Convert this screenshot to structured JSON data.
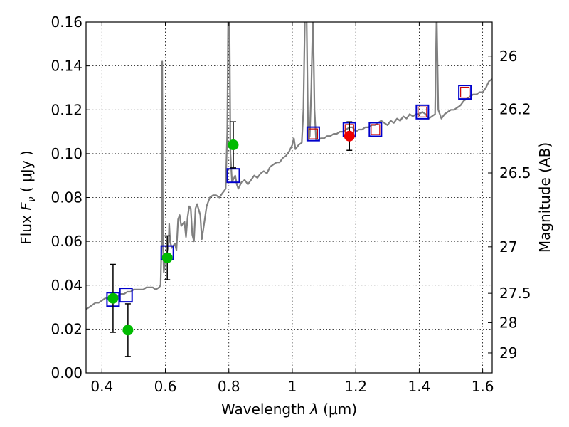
{
  "chart_data": {
    "type": "scatter",
    "title": "",
    "xlabel_prefix": "Wavelength",
    "xlabel_symbol": "λ",
    "xlabel_unit": "(μm)",
    "ylabel_prefix": "Flux",
    "ylabel_symbol": "F",
    "ylabel_subscript": "ν",
    "ylabel_unit": "( μJy )",
    "y2label": "Magnitude (AB)",
    "xlim": [
      0.35,
      1.63
    ],
    "ylim": [
      0.0,
      0.16
    ],
    "grid": true,
    "x_ticks": [
      0.4,
      0.6,
      0.8,
      1.0,
      1.2,
      1.4,
      1.6
    ],
    "x_tick_labels": [
      "0.4",
      "0.6",
      "0.8",
      "1",
      "1.2",
      "1.4",
      "1.6"
    ],
    "y_ticks": [
      0.0,
      0.02,
      0.04,
      0.06,
      0.08,
      0.1,
      0.12,
      0.14,
      0.16
    ],
    "y_tick_labels": [
      "0.00",
      "0.02",
      "0.04",
      "0.06",
      "0.08",
      "0.10",
      "0.12",
      "0.14",
      "0.16"
    ],
    "y2_ticks": [
      {
        "label": "26",
        "flux": 0.1445
      },
      {
        "label": "26.2",
        "flux": 0.1202
      },
      {
        "label": "26.5",
        "flux": 0.0912
      },
      {
        "label": "27",
        "flux": 0.0575
      },
      {
        "label": "27.5",
        "flux": 0.0363
      },
      {
        "label": "28",
        "flux": 0.0229
      },
      {
        "label": "29",
        "flux": 0.0091
      }
    ],
    "colors": {
      "spectrum": "#808080",
      "model": "#0000cc",
      "model_inner": "#cc0000",
      "green": "#00bb00",
      "red": "#ee0000",
      "errorbar": "#000000"
    },
    "spectrum": [
      [
        0.35,
        0.029
      ],
      [
        0.36,
        0.03
      ],
      [
        0.37,
        0.031
      ],
      [
        0.38,
        0.032
      ],
      [
        0.39,
        0.032
      ],
      [
        0.4,
        0.033
      ],
      [
        0.41,
        0.034
      ],
      [
        0.42,
        0.034
      ],
      [
        0.43,
        0.034
      ],
      [
        0.44,
        0.035
      ],
      [
        0.45,
        0.035
      ],
      [
        0.46,
        0.036
      ],
      [
        0.47,
        0.036
      ],
      [
        0.48,
        0.037
      ],
      [
        0.49,
        0.037
      ],
      [
        0.5,
        0.038
      ],
      [
        0.51,
        0.038
      ],
      [
        0.52,
        0.038
      ],
      [
        0.53,
        0.038
      ],
      [
        0.54,
        0.039
      ],
      [
        0.55,
        0.039
      ],
      [
        0.56,
        0.039
      ],
      [
        0.57,
        0.038
      ],
      [
        0.58,
        0.039
      ],
      [
        0.585,
        0.04
      ],
      [
        0.588,
        0.06
      ],
      [
        0.59,
        0.142
      ],
      [
        0.592,
        0.06
      ],
      [
        0.595,
        0.046
      ],
      [
        0.6,
        0.052
      ],
      [
        0.605,
        0.055
      ],
      [
        0.61,
        0.058
      ],
      [
        0.612,
        0.068
      ],
      [
        0.615,
        0.06
      ],
      [
        0.62,
        0.057
      ],
      [
        0.63,
        0.059
      ],
      [
        0.635,
        0.056
      ],
      [
        0.64,
        0.07
      ],
      [
        0.645,
        0.072
      ],
      [
        0.65,
        0.067
      ],
      [
        0.66,
        0.069
      ],
      [
        0.665,
        0.062
      ],
      [
        0.67,
        0.071
      ],
      [
        0.675,
        0.076
      ],
      [
        0.68,
        0.075
      ],
      [
        0.685,
        0.063
      ],
      [
        0.69,
        0.06
      ],
      [
        0.695,
        0.075
      ],
      [
        0.7,
        0.077
      ],
      [
        0.71,
        0.072
      ],
      [
        0.715,
        0.061
      ],
      [
        0.72,
        0.066
      ],
      [
        0.73,
        0.076
      ],
      [
        0.74,
        0.08
      ],
      [
        0.75,
        0.081
      ],
      [
        0.76,
        0.081
      ],
      [
        0.77,
        0.08
      ],
      [
        0.78,
        0.082
      ],
      [
        0.785,
        0.083
      ],
      [
        0.79,
        0.084
      ],
      [
        0.795,
        0.11
      ],
      [
        0.798,
        0.165
      ],
      [
        0.802,
        0.165
      ],
      [
        0.805,
        0.1
      ],
      [
        0.81,
        0.087
      ],
      [
        0.82,
        0.09
      ],
      [
        0.825,
        0.086
      ],
      [
        0.83,
        0.084
      ],
      [
        0.84,
        0.087
      ],
      [
        0.85,
        0.088
      ],
      [
        0.86,
        0.086
      ],
      [
        0.87,
        0.088
      ],
      [
        0.88,
        0.09
      ],
      [
        0.89,
        0.089
      ],
      [
        0.9,
        0.091
      ],
      [
        0.91,
        0.092
      ],
      [
        0.92,
        0.091
      ],
      [
        0.93,
        0.094
      ],
      [
        0.94,
        0.095
      ],
      [
        0.95,
        0.096
      ],
      [
        0.96,
        0.096
      ],
      [
        0.97,
        0.098
      ],
      [
        0.98,
        0.099
      ],
      [
        0.99,
        0.101
      ],
      [
        1.0,
        0.104
      ],
      [
        1.005,
        0.107
      ],
      [
        1.01,
        0.102
      ],
      [
        1.02,
        0.104
      ],
      [
        1.03,
        0.105
      ],
      [
        1.035,
        0.12
      ],
      [
        1.04,
        0.165
      ],
      [
        1.045,
        0.165
      ],
      [
        1.05,
        0.106
      ],
      [
        1.055,
        0.108
      ],
      [
        1.06,
        0.13
      ],
      [
        1.065,
        0.165
      ],
      [
        1.07,
        0.12
      ],
      [
        1.075,
        0.106
      ],
      [
        1.08,
        0.106
      ],
      [
        1.09,
        0.107
      ],
      [
        1.1,
        0.107
      ],
      [
        1.11,
        0.108
      ],
      [
        1.12,
        0.108
      ],
      [
        1.13,
        0.109
      ],
      [
        1.14,
        0.109
      ],
      [
        1.15,
        0.11
      ],
      [
        1.16,
        0.11
      ],
      [
        1.17,
        0.111
      ],
      [
        1.18,
        0.112
      ],
      [
        1.19,
        0.112
      ],
      [
        1.2,
        0.11
      ],
      [
        1.21,
        0.111
      ],
      [
        1.22,
        0.111
      ],
      [
        1.23,
        0.112
      ],
      [
        1.24,
        0.112
      ],
      [
        1.25,
        0.113
      ],
      [
        1.26,
        0.113
      ],
      [
        1.27,
        0.114
      ],
      [
        1.28,
        0.115
      ],
      [
        1.29,
        0.114
      ],
      [
        1.3,
        0.113
      ],
      [
        1.31,
        0.115
      ],
      [
        1.32,
        0.114
      ],
      [
        1.33,
        0.116
      ],
      [
        1.34,
        0.115
      ],
      [
        1.35,
        0.117
      ],
      [
        1.36,
        0.116
      ],
      [
        1.37,
        0.118
      ],
      [
        1.38,
        0.117
      ],
      [
        1.39,
        0.118
      ],
      [
        1.4,
        0.118
      ],
      [
        1.41,
        0.119
      ],
      [
        1.42,
        0.118
      ],
      [
        1.43,
        0.116
      ],
      [
        1.44,
        0.117
      ],
      [
        1.45,
        0.118
      ],
      [
        1.455,
        0.165
      ],
      [
        1.46,
        0.12
      ],
      [
        1.47,
        0.116
      ],
      [
        1.48,
        0.118
      ],
      [
        1.49,
        0.119
      ],
      [
        1.5,
        0.12
      ],
      [
        1.51,
        0.12
      ],
      [
        1.52,
        0.121
      ],
      [
        1.53,
        0.122
      ],
      [
        1.54,
        0.124
      ],
      [
        1.55,
        0.125
      ],
      [
        1.56,
        0.126
      ],
      [
        1.57,
        0.127
      ],
      [
        1.58,
        0.127
      ],
      [
        1.59,
        0.128
      ],
      [
        1.6,
        0.128
      ],
      [
        1.61,
        0.13
      ],
      [
        1.62,
        0.133
      ],
      [
        1.63,
        0.134
      ]
    ],
    "model_points": [
      {
        "x": 0.435,
        "y": 0.0335,
        "inner": false
      },
      {
        "x": 0.476,
        "y": 0.0355,
        "inner": false
      },
      {
        "x": 0.606,
        "y": 0.0548,
        "inner": false
      },
      {
        "x": 0.814,
        "y": 0.09,
        "inner": false
      },
      {
        "x": 1.066,
        "y": 0.109,
        "inner": true
      },
      {
        "x": 1.18,
        "y": 0.111,
        "inner": true
      },
      {
        "x": 1.262,
        "y": 0.111,
        "inner": true
      },
      {
        "x": 1.41,
        "y": 0.119,
        "inner": true
      },
      {
        "x": 1.544,
        "y": 0.128,
        "inner": true
      }
    ],
    "green_points": [
      {
        "x": 0.435,
        "y": 0.034,
        "err": 0.0155
      },
      {
        "x": 0.482,
        "y": 0.0195,
        "err": 0.012
      },
      {
        "x": 0.606,
        "y": 0.0525,
        "err": 0.01
      },
      {
        "x": 0.814,
        "y": 0.104,
        "err": 0.0105
      }
    ],
    "red_points": [
      {
        "x": 1.18,
        "y": 0.108,
        "err": 0.0065
      }
    ]
  }
}
